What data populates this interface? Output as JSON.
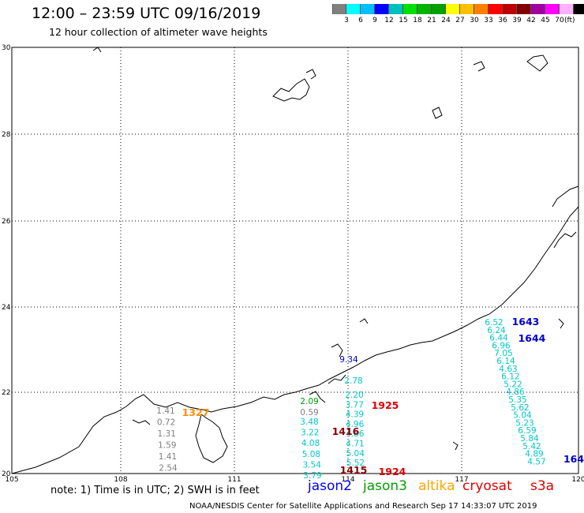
{
  "title": "12:00 – 23:59 UTC 09/16/2019",
  "subtitle": "12 hour collection of altimeter wave heights",
  "colorbar": {
    "unit": "(ft)",
    "colors": [
      "#808080",
      "#00ffff",
      "#00bfff",
      "#0000ff",
      "#00bfbf",
      "#00e000",
      "#00b400",
      "#00a000",
      "#ffff00",
      "#ffbf00",
      "#ff8000",
      "#ff0000",
      "#c00000",
      "#800000",
      "#a000a0",
      "#ff00ff",
      "#ffb0ff",
      "#000000"
    ],
    "labels": [
      "3",
      "6",
      "9",
      "12",
      "15",
      "18",
      "21",
      "24",
      "27",
      "30",
      "33",
      "36",
      "39",
      "42",
      "45",
      "70"
    ]
  },
  "axes": {
    "lat_labels": [
      "30",
      "28",
      "26",
      "24",
      "22",
      "20"
    ],
    "lon_labels": [
      "105",
      "108",
      "111",
      "114",
      "117",
      "120"
    ]
  },
  "tracks": [
    {
      "satellite": "altika",
      "color": "#808080",
      "values": [
        "1.41",
        "0.72",
        "1.31",
        "1.59",
        "1.41",
        "2.54"
      ]
    },
    {
      "satellite": "jason3",
      "color": "#808080",
      "values": [
        "0.59"
      ]
    },
    {
      "satellite": "jason3",
      "color": "#00c8c8",
      "values": [
        "3.48",
        "3.22",
        "4.08",
        "5.08",
        "3.54",
        "3.79"
      ]
    },
    {
      "satellite": "cryosat",
      "color": "#00c8c8",
      "values": [
        "2.20",
        "3.77",
        "4.39",
        "4.96",
        "4.86",
        "4.71",
        "5.04",
        "5.52"
      ]
    },
    {
      "satellite": "jason2",
      "color": "#00c8c8",
      "values": [
        "6.52",
        "6.24",
        "6.44",
        "6.96",
        "7.05",
        "6.14",
        "4.63",
        "6.12",
        "5.22",
        "4.86",
        "5.35",
        "5.62",
        "5.04",
        "5.23",
        "6.59",
        "5.84",
        "5.42",
        "4.89",
        "4.57"
      ]
    }
  ],
  "track_extras": {
    "jason3_top": "2.09",
    "blue_label": "9.34",
    "cyan_top": "2.78"
  },
  "time_labels": [
    {
      "text": "1327",
      "color": "#ff8c00"
    },
    {
      "text": "1925",
      "color": "#e00000"
    },
    {
      "text": "1416",
      "color": "#8b0000"
    },
    {
      "text": "1415",
      "color": "#8b0000"
    },
    {
      "text": "1924",
      "color": "#e00000"
    },
    {
      "text": "1643",
      "color": "#0000cc"
    },
    {
      "text": "1644",
      "color": "#0000cc"
    },
    {
      "text": "164",
      "color": "#0000cc"
    }
  ],
  "note": "note: 1) Time is in UTC; 2) SWH is in feet",
  "legend": [
    {
      "name": "jason2",
      "color": "#0000ff"
    },
    {
      "name": "jason3",
      "color": "#00a000"
    },
    {
      "name": "altika",
      "color": "#ffa500"
    },
    {
      "name": "cryosat",
      "color": "#e00000"
    },
    {
      "name": "s3a",
      "color": "#e00000"
    }
  ],
  "credit": "NOAA/NESDIS Center for Satellite Applications and Research   Sep 17 14:33:07 UTC 2019"
}
